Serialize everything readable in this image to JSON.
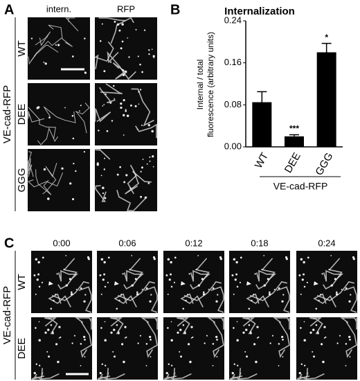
{
  "panel_a": {
    "label": "A",
    "columns": [
      "intern.",
      "RFP"
    ],
    "rows": [
      "WT",
      "DEE",
      "GGG"
    ],
    "group": "VE-cad-RFP"
  },
  "panel_b": {
    "label": "B"
  },
  "chart_data": {
    "type": "bar",
    "title": "Internalization",
    "ylabel": [
      "Internal / total",
      "fluorescence (arbitrary units)"
    ],
    "categories": [
      "WT",
      "DEE",
      "GGG"
    ],
    "values": [
      0.085,
      0.02,
      0.18
    ],
    "errors": [
      0.02,
      0.003,
      0.017
    ],
    "significance": [
      null,
      "***",
      "*"
    ],
    "group_label": "VE-cad-RFP",
    "color": "#000000",
    "ylim": [
      0,
      0.24
    ],
    "yticks": [
      {
        "value": 0,
        "label": "0.00"
      },
      0.08,
      0.16,
      0.24
    ],
    "grid": false
  },
  "panel_c": {
    "label": "C",
    "times": [
      "0:00",
      "0:06",
      "0:12",
      "0:18",
      "0:24"
    ],
    "rows": [
      "WT",
      "DEE"
    ],
    "group": "VE-cad-RFP"
  }
}
